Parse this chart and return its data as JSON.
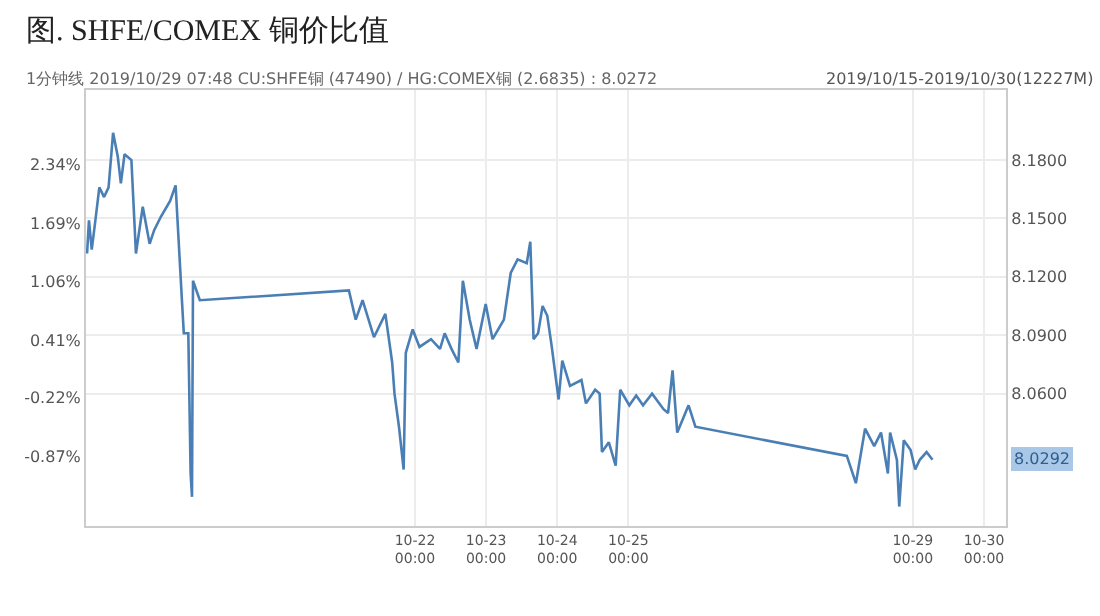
{
  "chart_data": {
    "type": "line",
    "title": "图. SHFE/COMEX 铜价比值",
    "subtitle": "1分钟线 2019/10/29 07:48 CU:SHFE铜 (47490) / HG:COMEX铜 (2.6835) : 8.0272",
    "annotations": [
      "2019/10/15-2019/10/30(12227M)",
      "8.0292"
    ],
    "x": [
      "2019-10-17T09:22",
      "2019-10-17T10:00",
      "2019-10-17T10:56",
      "2019-10-17T12:00",
      "2019-10-17T13:30",
      "2019-10-17T15:06",
      "2019-10-17T16:37",
      "2019-10-17T18:08",
      "2019-10-17T19:42",
      "2019-10-17T20:46",
      "2019-10-17T22:00",
      "2019-10-18T00:19",
      "2019-10-18T01:51",
      "2019-10-18T04:09",
      "2019-10-18T06:28",
      "2019-10-18T08:00",
      "2019-10-18T10:18",
      "2019-10-18T13:23",
      "2019-10-18T15:14",
      "2019-10-18T17:13",
      "2019-10-18T18:00",
      "2019-10-18T19:31",
      "2019-10-18T20:18",
      "2019-10-18T20:46",
      "2019-10-18T21:06",
      "2019-10-18T23:24",
      "2019-10-21T01:42",
      "2019-10-21T04:00",
      "2019-10-21T06:19",
      "2019-10-21T10:09",
      "2019-10-21T14:00",
      "2019-10-21T16:18",
      "2019-10-21T17:05",
      "2019-10-21T18:36",
      "2019-10-21T20:10",
      "2019-10-21T20:54",
      "2019-10-21T23:13",
      "2019-10-22T01:31",
      "2019-10-22T05:24",
      "2019-10-22T08:27",
      "2019-10-22T10:01",
      "2019-10-22T12:19",
      "2019-10-22T14:38",
      "2019-10-22T16:09",
      "2019-10-22T18:28",
      "2019-10-22T20:46",
      "2019-10-22T23:51",
      "2019-10-23T02:10",
      "2019-10-23T06:00",
      "2019-10-23T08:18",
      "2019-10-23T10:37",
      "2019-10-23T13:42",
      "2019-10-23T14:54",
      "2019-10-23T16:00",
      "2019-10-23T17:32",
      "2019-10-23T19:03",
      "2019-10-23T20:38",
      "2019-10-23T22:09",
      "2019-10-24T00:27",
      "2019-10-24T01:42",
      "2019-10-24T04:18",
      "2019-10-24T08:10",
      "2019-10-24T09:41",
      "2019-10-24T12:47",
      "2019-10-24T14:18",
      "2019-10-24T15:05",
      "2019-10-24T17:24",
      "2019-10-24T19:42",
      "2019-10-24T21:14",
      "2019-10-25T00:19",
      "2019-10-25T02:38",
      "2019-10-25T04:56",
      "2019-10-25T08:00",
      "2019-10-25T11:51",
      "2019-10-25T13:23",
      "2019-10-25T14:54",
      "2019-10-25T16:29",
      "2019-10-25T20:18",
      "2019-10-25T22:36",
      "2019-10-28T01:42",
      "2019-10-28T04:45",
      "2019-10-28T07:51",
      "2019-10-28T10:56",
      "2019-10-28T13:14",
      "2019-10-28T15:33",
      "2019-10-28T16:18",
      "2019-10-28T18:36",
      "2019-10-28T19:23",
      "2019-10-28T20:54",
      "2019-10-28T23:13",
      "2019-10-29T00:46",
      "2019-10-29T02:18",
      "2019-10-29T04:36",
      "2019-10-29T06:36"
    ],
    "series": [
      {
        "color": "#4a7fb5",
        "axis": "y2",
        "values": [
          8.132,
          8.149,
          8.134,
          8.147,
          8.166,
          8.161,
          8.166,
          8.194,
          8.182,
          8.168,
          8.183,
          8.18,
          8.132,
          8.156,
          8.137,
          8.144,
          8.151,
          8.159,
          8.167,
          8.112,
          8.091,
          8.091,
          8.019,
          8.007,
          8.118,
          8.108,
          8.113,
          8.098,
          8.108,
          8.089,
          8.101,
          8.076,
          8.06,
          8.043,
          8.021,
          8.081,
          8.093,
          8.084,
          8.088,
          8.083,
          8.091,
          8.083,
          8.076,
          8.118,
          8.098,
          8.083,
          8.106,
          8.088,
          8.098,
          8.122,
          8.129,
          8.127,
          8.138,
          8.088,
          8.091,
          8.105,
          8.1,
          8.084,
          8.057,
          8.077,
          8.064,
          8.067,
          8.055,
          8.062,
          8.06,
          8.03,
          8.035,
          8.023,
          8.062,
          8.054,
          8.059,
          8.054,
          8.06,
          8.052,
          8.05,
          8.072,
          8.04,
          8.054,
          8.043,
          8.028,
          8.014,
          8.042,
          8.033,
          8.04,
          8.019,
          8.04,
          8.026,
          8.002,
          8.036,
          8.031,
          8.021,
          8.026,
          8.03,
          8.026
        ]
      }
    ],
    "xlim": [
      "2019-10-17T09:00",
      "2019-10-30T07:24"
    ],
    "xticks": [
      {
        "value": "2019-10-22T00:00",
        "label": "10-22 00:00"
      },
      {
        "value": "2019-10-23T00:00",
        "label": "10-23 00:00"
      },
      {
        "value": "2019-10-24T00:00",
        "label": "10-24 00:00"
      },
      {
        "value": "2019-10-25T00:00",
        "label": "10-25 00:00"
      },
      {
        "value": "2019-10-29T00:00",
        "label": "10-29 00:00"
      },
      {
        "value": "2019-10-30T00:00",
        "label": "10-30 00:00"
      }
    ],
    "ylim": [
      -1.633,
      3.16
    ],
    "yticks": [
      {
        "value": -0.87,
        "label": "-0.87%"
      },
      {
        "value": -0.22,
        "label": "-0.22%"
      },
      {
        "value": 0.41,
        "label": "0.41%"
      },
      {
        "value": 1.06,
        "label": "1.06%"
      },
      {
        "value": 1.69,
        "label": "1.69%"
      },
      {
        "value": 2.34,
        "label": "2.34%"
      }
    ],
    "y2lim": [
      7.992,
      8.216
    ],
    "y2ticks": [
      {
        "value": 8.06,
        "label": "8.0600"
      },
      {
        "value": 8.09,
        "label": "8.0900"
      },
      {
        "value": 8.12,
        "label": "8.1200"
      },
      {
        "value": 8.15,
        "label": "8.1500"
      },
      {
        "value": 8.18,
        "label": "8.1800"
      }
    ],
    "grid": true,
    "marker": "none",
    "line_style": "solid"
  }
}
